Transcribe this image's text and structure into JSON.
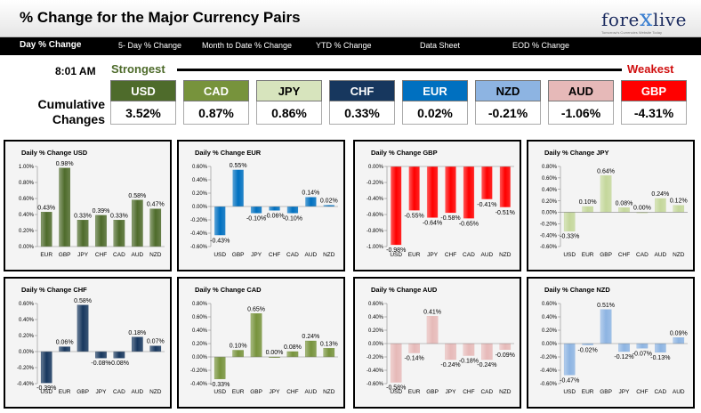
{
  "header": {
    "title": "% Change for the Major Currency Pairs",
    "logo_text_a": "fore",
    "logo_text_x": "x",
    "logo_text_b": "live",
    "logo_tagline": "Tomorrow's Currencies Website Today"
  },
  "nav": [
    "Day % Change",
    "5- Day % Change",
    "Month to Date % Change",
    "YTD % Change",
    "Data Sheet",
    "EOD % Change"
  ],
  "time": "8:01 AM",
  "strongest_label": "Strongest",
  "weakest_label": "Weakest",
  "cumulative_label": [
    "Cumulative",
    "Changes"
  ],
  "currencies": [
    {
      "name": "USD",
      "value": "3.52%",
      "color": "#4e6b2b",
      "text": "#ffffff"
    },
    {
      "name": "CAD",
      "value": "0.87%",
      "color": "#77933c",
      "text": "#ffffff"
    },
    {
      "name": "JPY",
      "value": "0.86%",
      "color": "#d7e4bd",
      "text": "#000000"
    },
    {
      "name": "CHF",
      "value": "0.33%",
      "color": "#17375e",
      "text": "#ffffff"
    },
    {
      "name": "EUR",
      "value": "0.02%",
      "color": "#0070c0",
      "text": "#ffffff"
    },
    {
      "name": "NZD",
      "value": "-0.21%",
      "color": "#8db4e2",
      "text": "#000000"
    },
    {
      "name": "AUD",
      "value": "-1.06%",
      "color": "#e6b9b8",
      "text": "#000000"
    },
    {
      "name": "GBP",
      "value": "-4.31%",
      "color": "#ff0000",
      "text": "#ffffff"
    }
  ],
  "chart_data": [
    {
      "type": "bar",
      "title": "Daily % Change USD",
      "categories": [
        "EUR",
        "GBP",
        "JPY",
        "CHF",
        "CAD",
        "AUD",
        "NZD"
      ],
      "values": [
        0.43,
        0.98,
        0.33,
        0.39,
        0.33,
        0.58,
        0.47
      ],
      "labels": [
        "0.43%",
        "0.98%",
        "0.33%",
        "0.39%",
        "0.33%",
        "0.58%",
        "0.47%"
      ],
      "ylim": [
        0,
        1.0
      ],
      "ticks": [
        0,
        0.2,
        0.4,
        0.6,
        0.8,
        1.0
      ],
      "tick_labels": [
        "0.00%",
        "0.20%",
        "0.40%",
        "0.60%",
        "0.80%",
        "1.00%"
      ],
      "color": "#4e6b2b"
    },
    {
      "type": "bar",
      "title": "Daily % Change EUR",
      "categories": [
        "USD",
        "GBP",
        "JPY",
        "CHF",
        "CAD",
        "AUD",
        "NZD"
      ],
      "values": [
        -0.43,
        0.55,
        -0.1,
        -0.06,
        -0.1,
        0.14,
        0.02
      ],
      "labels": [
        "-0.43%",
        "0.55%",
        "-0.10%",
        "-0.06%",
        "-0.10%",
        "0.14%",
        "0.02%"
      ],
      "ylim": [
        -0.6,
        0.6
      ],
      "ticks": [
        -0.6,
        -0.4,
        -0.2,
        0,
        0.2,
        0.4,
        0.6
      ],
      "tick_labels": [
        "-0.60%",
        "-0.40%",
        "-0.20%",
        "0.00%",
        "0.20%",
        "0.40%",
        "0.60%"
      ],
      "color": "#0070c0"
    },
    {
      "type": "bar",
      "title": "Daily % Change GBP",
      "categories": [
        "USD",
        "EUR",
        "JPY",
        "CHF",
        "CAD",
        "AUD",
        "NZD"
      ],
      "values": [
        -0.98,
        -0.55,
        -0.64,
        -0.58,
        -0.65,
        -0.41,
        -0.51
      ],
      "labels": [
        "-0.98%",
        "-0.55%",
        "-0.64%",
        "-0.58%",
        "-0.65%",
        "-0.41%",
        "-0.51%"
      ],
      "ylim": [
        -1.0,
        0
      ],
      "ticks": [
        -1.0,
        -0.8,
        -0.6,
        -0.4,
        -0.2,
        0
      ],
      "tick_labels": [
        "-1.00%",
        "-0.80%",
        "-0.60%",
        "-0.40%",
        "-0.20%",
        "0.00%"
      ],
      "color": "#ff0000"
    },
    {
      "type": "bar",
      "title": "Daily % Change JPY",
      "categories": [
        "USD",
        "EUR",
        "GBP",
        "CHF",
        "CAD",
        "AUD",
        "NZD"
      ],
      "values": [
        -0.33,
        0.1,
        0.64,
        0.08,
        0.0,
        0.24,
        0.12
      ],
      "labels": [
        "-0.33%",
        "0.10%",
        "0.64%",
        "0.08%",
        "0.00%",
        "0.24%",
        "0.12%"
      ],
      "ylim": [
        -0.6,
        0.8
      ],
      "ticks": [
        -0.6,
        -0.4,
        -0.2,
        0,
        0.2,
        0.4,
        0.6,
        0.8
      ],
      "tick_labels": [
        "-0.60%",
        "-0.40%",
        "-0.20%",
        "0.00%",
        "0.20%",
        "0.40%",
        "0.60%",
        "0.80%"
      ],
      "color": "#c4d79b"
    },
    {
      "type": "bar",
      "title": "Daily % Change CHF",
      "categories": [
        "USD",
        "EUR",
        "GBP",
        "JPY",
        "CAD",
        "AUD",
        "NZD"
      ],
      "values": [
        -0.39,
        0.06,
        0.58,
        -0.08,
        -0.08,
        0.18,
        0.07
      ],
      "labels": [
        "-0.39%",
        "0.06%",
        "0.58%",
        "-0.08%",
        "-0.08%",
        "0.18%",
        "0.07%"
      ],
      "ylim": [
        -0.4,
        0.6
      ],
      "ticks": [
        -0.4,
        -0.2,
        0,
        0.2,
        0.4,
        0.6
      ],
      "tick_labels": [
        "-0.40%",
        "-0.20%",
        "0.00%",
        "0.20%",
        "0.40%",
        "0.60%"
      ],
      "color": "#17375e"
    },
    {
      "type": "bar",
      "title": "Daily % Change CAD",
      "categories": [
        "USD",
        "EUR",
        "GBP",
        "JPY",
        "CHF",
        "AUD",
        "NZD"
      ],
      "values": [
        -0.33,
        0.1,
        0.65,
        0.0,
        0.08,
        0.24,
        0.13
      ],
      "labels": [
        "-0.33%",
        "0.10%",
        "0.65%",
        "0.00%",
        "0.08%",
        "0.24%",
        "0.13%"
      ],
      "ylim": [
        -0.4,
        0.8
      ],
      "ticks": [
        -0.4,
        -0.2,
        0,
        0.2,
        0.4,
        0.6,
        0.8
      ],
      "tick_labels": [
        "-0.40%",
        "-0.20%",
        "0.00%",
        "0.20%",
        "0.40%",
        "0.60%",
        "0.80%"
      ],
      "color": "#77933c"
    },
    {
      "type": "bar",
      "title": "Daily % Change AUD",
      "categories": [
        "USD",
        "EUR",
        "GBP",
        "JPY",
        "CHF",
        "CAD",
        "NZD"
      ],
      "values": [
        -0.58,
        -0.14,
        0.41,
        -0.24,
        -0.18,
        -0.24,
        -0.09
      ],
      "labels": [
        "-0.58%",
        "-0.14%",
        "0.41%",
        "-0.24%",
        "-0.18%",
        "-0.24%",
        "-0.09%"
      ],
      "ylim": [
        -0.6,
        0.6
      ],
      "ticks": [
        -0.6,
        -0.4,
        -0.2,
        0,
        0.2,
        0.4,
        0.6
      ],
      "tick_labels": [
        "-0.60%",
        "-0.40%",
        "-0.20%",
        "0.00%",
        "0.20%",
        "0.40%",
        "0.60%"
      ],
      "color": "#e6b9b8"
    },
    {
      "type": "bar",
      "title": "Daily % Change NZD",
      "categories": [
        "USD",
        "EUR",
        "GBP",
        "JPY",
        "CHF",
        "CAD",
        "AUD"
      ],
      "values": [
        -0.47,
        -0.02,
        0.51,
        -0.12,
        -0.07,
        -0.13,
        0.09
      ],
      "labels": [
        "-0.47%",
        "-0.02%",
        "0.51%",
        "-0.12%",
        "-0.07%",
        "-0.13%",
        "0.09%"
      ],
      "ylim": [
        -0.6,
        0.6
      ],
      "ticks": [
        -0.6,
        -0.4,
        -0.2,
        0,
        0.2,
        0.4,
        0.6
      ],
      "tick_labels": [
        "-0.60%",
        "-0.40%",
        "-0.20%",
        "0.00%",
        "0.20%",
        "0.40%",
        "0.60%"
      ],
      "color": "#8db4e2"
    }
  ]
}
